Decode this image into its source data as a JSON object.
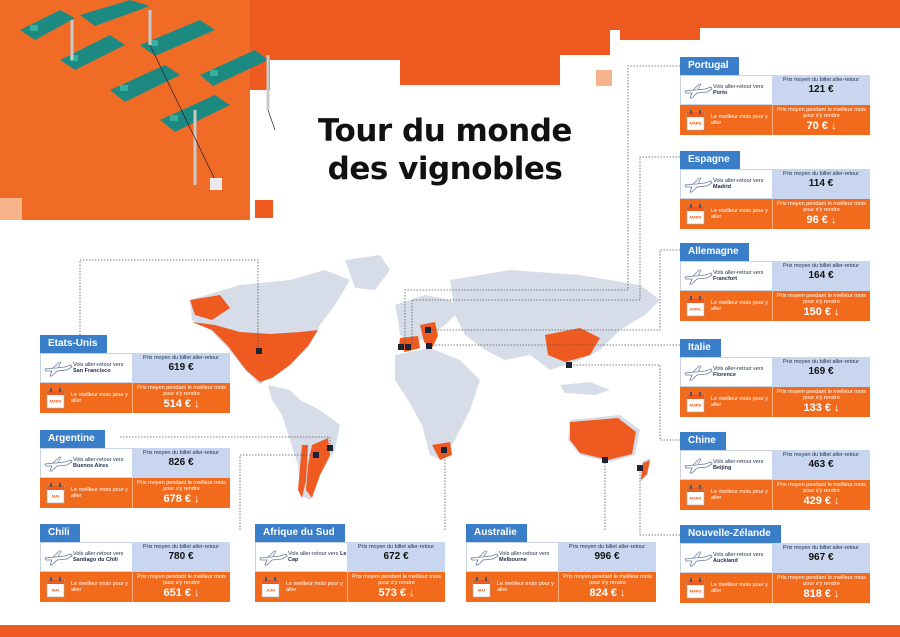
{
  "title_line1": "Tour du monde",
  "title_line2": "des vignobles",
  "labels": {
    "avg_price": "Prix moyen du billet aller-retour",
    "best_month": "Le meilleur mois pour y aller",
    "best_price": "Prix moyen pendant le meilleur mois pour s'y rendre",
    "round_trip": "Vols aller-retour vers"
  },
  "colors": {
    "accent": "#f26b1d",
    "blue": "#3a7dc9",
    "light_blue": "#c8d7ef"
  },
  "destinations": [
    {
      "country": "Portugal",
      "city": "Porto",
      "price": "121 €",
      "month": "MARS",
      "best_price": "70 € ↓"
    },
    {
      "country": "Espagne",
      "city": "Madrid",
      "price": "114 €",
      "month": "MARS",
      "best_price": "96 € ↓"
    },
    {
      "country": "Allemagne",
      "city": "Francfort",
      "price": "164 €",
      "month": "AVRIL",
      "best_price": "150 € ↓"
    },
    {
      "country": "Italie",
      "city": "Florence",
      "price": "169 €",
      "month": "MARS",
      "best_price": "133 € ↓"
    },
    {
      "country": "Chine",
      "city": "Beijing",
      "price": "463 €",
      "month": "MARS",
      "best_price": "429 € ↓"
    },
    {
      "country": "Nouvelle-Zélande",
      "city": "Auckland",
      "price": "967 €",
      "month": "MARS",
      "best_price": "818 € ↓"
    },
    {
      "country": "Etats-Unis",
      "city": "San Francisco",
      "price": "619 €",
      "month": "MARS",
      "best_price": "514 € ↓"
    },
    {
      "country": "Argentine",
      "city": "Buenos Aires",
      "price": "826 €",
      "month": "MAI",
      "best_price": "678 € ↓"
    },
    {
      "country": "Chili",
      "city": "Santiago du Chili",
      "price": "780 €",
      "month": "MAI",
      "best_price": "651 € ↓"
    },
    {
      "country": "Afrique du Sud",
      "city": "Le Cap",
      "price": "672 €",
      "month": "JUIN",
      "best_price": "573 € ↓"
    },
    {
      "country": "Australie",
      "city": "Melbourne",
      "price": "996 €",
      "month": "MAI",
      "best_price": "824 € ↓"
    }
  ]
}
